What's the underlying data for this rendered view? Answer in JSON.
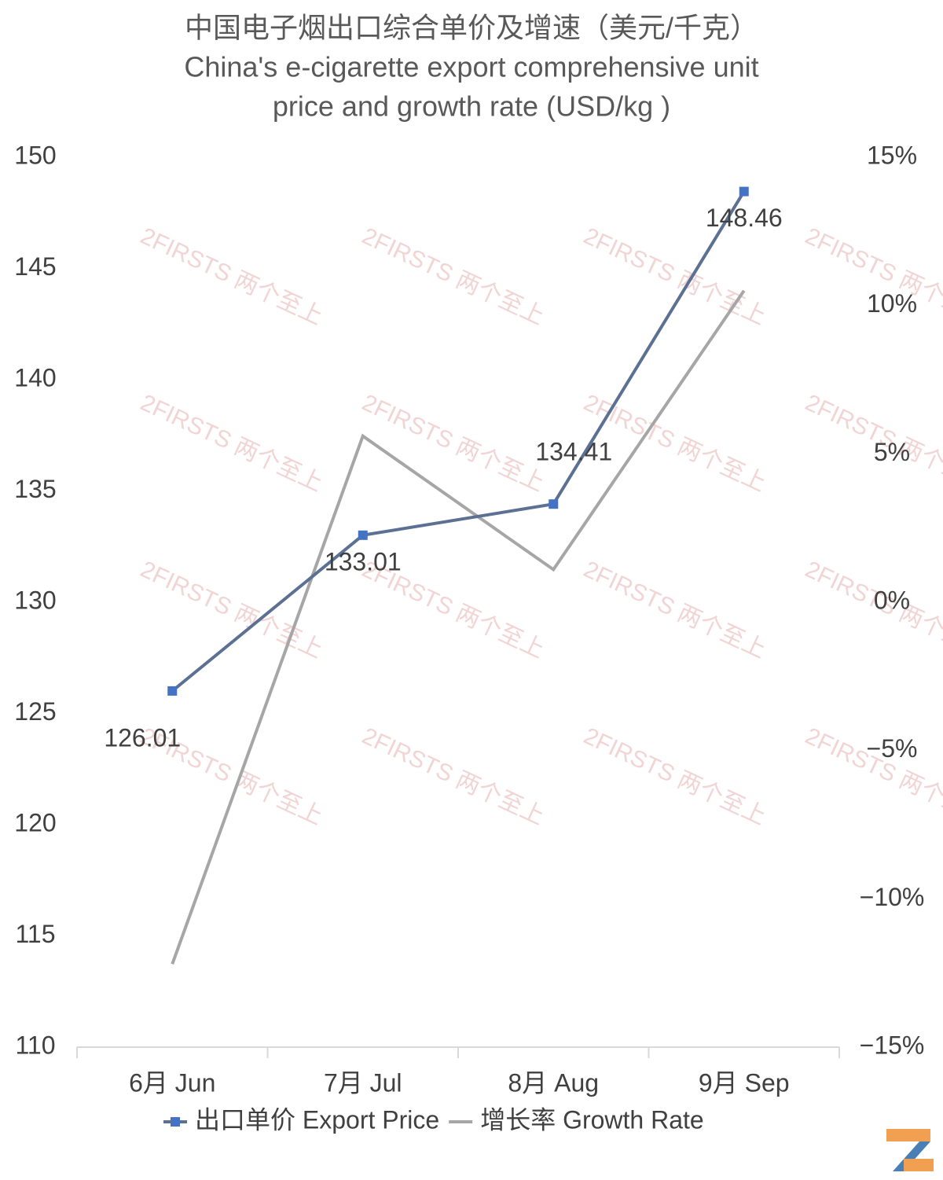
{
  "chart_data": {
    "type": "line",
    "title": [
      "中国电子烟出口综合单价及增速（美元/千克）",
      "China's e-cigarette export comprehensive unit",
      "price and growth rate (USD/kg )"
    ],
    "categories": [
      "6月 Jun",
      "7月 Jul",
      "8月 Aug",
      "9月 Sep"
    ],
    "series": [
      {
        "name": "出口单价 Export Price",
        "color": "#5b7092",
        "marker_color": "#4472c4",
        "values": [
          126.01,
          133.01,
          134.41,
          148.46
        ]
      },
      {
        "name": "增长率 Growth Rate",
        "color": "#a6a6a6",
        "axis": "y2",
        "values": [
          -12.2,
          5.6,
          1.1,
          10.5
        ]
      }
    ],
    "ylim": [
      110,
      150
    ],
    "yticks": [
      110,
      115,
      120,
      125,
      130,
      135,
      140,
      145,
      150
    ],
    "y2lim": [
      -15,
      15
    ],
    "y2ticks": [
      {
        "value": -15,
        "label": "−15%"
      },
      {
        "value": -10,
        "label": "−10%"
      },
      {
        "value": -5,
        "label": "−5%"
      },
      {
        "value": 0,
        "label": "0%"
      },
      {
        "value": 5,
        "label": "5%"
      },
      {
        "value": 10,
        "label": "10%"
      },
      {
        "value": 15,
        "label": "15%"
      }
    ],
    "grid": false,
    "legend": "bottom"
  },
  "watermark": "2FIRSTS 两个至上"
}
